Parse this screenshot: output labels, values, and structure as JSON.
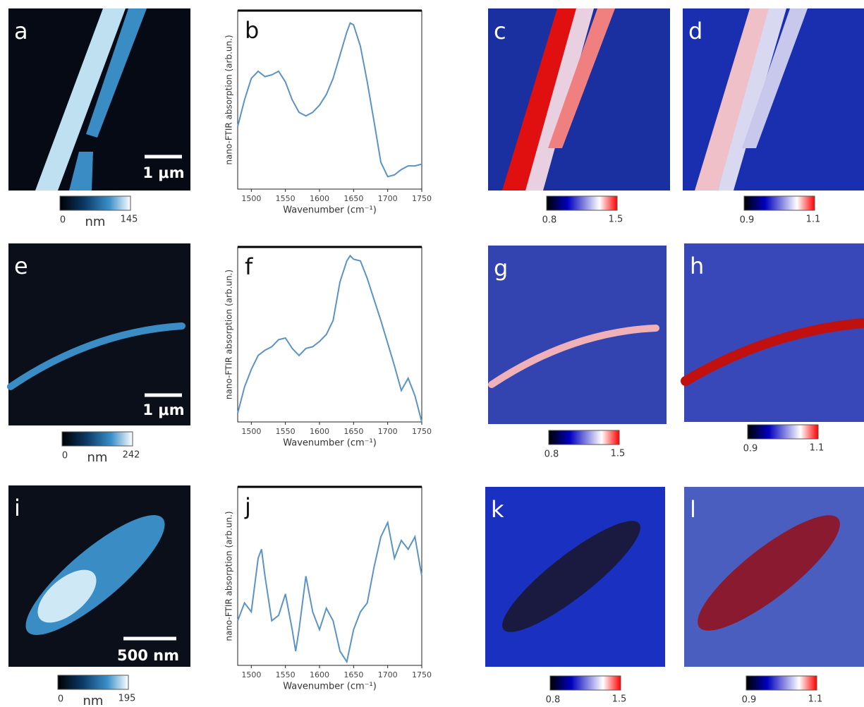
{
  "panels": [
    {
      "label": "a",
      "scale_bar": "1 μm",
      "unit": "nm",
      "colorbar": [
        0,
        145
      ]
    },
    {
      "label": "c",
      "colorbar": [
        0.8,
        1.5
      ]
    },
    {
      "label": "d",
      "colorbar": [
        0.9,
        1.1
      ]
    },
    {
      "label": "e",
      "scale_bar": "1 μm",
      "unit": "nm",
      "colorbar": [
        0,
        242
      ]
    },
    {
      "label": "g",
      "colorbar": [
        0.8,
        1.5
      ]
    },
    {
      "label": "h",
      "colorbar": [
        0.9,
        1.1
      ]
    },
    {
      "label": "i",
      "scale_bar": "500 nm",
      "unit": "nm",
      "colorbar": [
        0,
        195
      ]
    },
    {
      "label": "k",
      "colorbar": [
        0.8,
        1.5
      ]
    },
    {
      "label": "l",
      "colorbar": [
        0.9,
        1.1
      ]
    }
  ],
  "chart_data": [
    {
      "type": "line",
      "panel_label": "b",
      "xlabel": "Wavenumber (cm⁻¹)",
      "ylabel": "nano-FTIR absorption (arb.un.)",
      "color": "#5b93c7",
      "x": [
        1480,
        1490,
        1500,
        1510,
        1520,
        1530,
        1540,
        1550,
        1560,
        1570,
        1580,
        1590,
        1600,
        1610,
        1620,
        1630,
        1640,
        1645,
        1650,
        1660,
        1670,
        1680,
        1690,
        1700,
        1710,
        1720,
        1730,
        1740,
        1750
      ],
      "values": [
        0.35,
        0.5,
        0.62,
        0.66,
        0.63,
        0.64,
        0.66,
        0.6,
        0.5,
        0.43,
        0.41,
        0.43,
        0.47,
        0.53,
        0.62,
        0.75,
        0.88,
        0.93,
        0.92,
        0.8,
        0.6,
        0.38,
        0.15,
        0.07,
        0.08,
        0.11,
        0.13,
        0.13,
        0.14
      ],
      "xlim": [
        1480,
        1750
      ],
      "xticks": [
        1500,
        1550,
        1600,
        1650,
        1700,
        1750
      ],
      "ylim": [
        0,
        1
      ]
    },
    {
      "type": "line",
      "panel_label": "f",
      "xlabel": "Wavenumber (cm⁻¹)",
      "ylabel": "nano-FTIR absorption (arb.un.)",
      "color": "#5b93c7",
      "x": [
        1480,
        1490,
        1500,
        1510,
        1520,
        1530,
        1540,
        1550,
        1560,
        1570,
        1580,
        1590,
        1600,
        1610,
        1620,
        1630,
        1640,
        1645,
        1650,
        1660,
        1670,
        1680,
        1690,
        1700,
        1710,
        1720,
        1730,
        1740,
        1750
      ],
      "values": [
        0.05,
        0.2,
        0.3,
        0.38,
        0.41,
        0.43,
        0.47,
        0.48,
        0.42,
        0.38,
        0.42,
        0.43,
        0.46,
        0.5,
        0.58,
        0.8,
        0.92,
        0.95,
        0.93,
        0.92,
        0.82,
        0.7,
        0.58,
        0.45,
        0.32,
        0.18,
        0.25,
        0.15,
        0.0
      ],
      "xlim": [
        1480,
        1750
      ],
      "xticks": [
        1500,
        1550,
        1600,
        1650,
        1700,
        1750
      ],
      "ylim": [
        0,
        1
      ]
    },
    {
      "type": "line",
      "panel_label": "j",
      "xlabel": "Wavenumber (cm⁻¹)",
      "ylabel": "nano-FTIR absorption (arb.un.)",
      "color": "#5b93c7",
      "x": [
        1480,
        1490,
        1500,
        1510,
        1515,
        1520,
        1530,
        1540,
        1550,
        1560,
        1565,
        1570,
        1580,
        1590,
        1600,
        1610,
        1620,
        1630,
        1640,
        1650,
        1660,
        1670,
        1680,
        1690,
        1700,
        1710,
        1720,
        1730,
        1740,
        1750
      ],
      "values": [
        0.25,
        0.35,
        0.3,
        0.6,
        0.65,
        0.5,
        0.25,
        0.28,
        0.4,
        0.2,
        0.08,
        0.2,
        0.5,
        0.3,
        0.2,
        0.32,
        0.25,
        0.08,
        0.02,
        0.2,
        0.3,
        0.35,
        0.55,
        0.72,
        0.8,
        0.6,
        0.7,
        0.65,
        0.72,
        0.5
      ],
      "xlim": [
        1480,
        1750
      ],
      "xticks": [
        1500,
        1550,
        1600,
        1650,
        1700,
        1750
      ],
      "ylim": [
        0,
        1
      ]
    }
  ]
}
